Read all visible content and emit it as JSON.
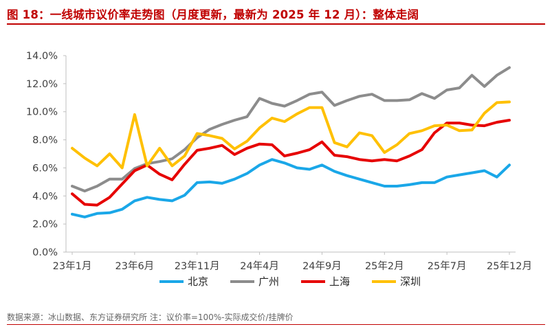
{
  "title": "图 18：一线城市议价率走势图（月度更新，最新为 2025 年 12 月）：整体走阔",
  "source": "数据来源：冰山数据、东方证券研究所   注：议价率=100%-实际成交价/挂牌价",
  "chart_data": {
    "type": "line",
    "ylim": [
      0,
      14
    ],
    "yticks": [
      "0.0%",
      "2.0%",
      "4.0%",
      "6.0%",
      "8.0%",
      "10.0%",
      "12.0%",
      "14.0%"
    ],
    "xtick_labels": [
      "23年1月",
      "23年6月",
      "23年11月",
      "24年4月",
      "24年9月",
      "25年2月",
      "25年7月",
      "25年12月"
    ],
    "xtick_index": [
      0,
      5,
      10,
      15,
      20,
      25,
      30,
      35
    ],
    "grid": false,
    "legend_position": "bottom",
    "n_points": 36,
    "series": [
      {
        "name": "北京",
        "color": "#1aa7e8",
        "values": [
          2.7,
          2.5,
          2.75,
          2.8,
          3.05,
          3.65,
          3.9,
          3.75,
          3.65,
          4.05,
          4.95,
          5.0,
          4.9,
          5.2,
          5.6,
          6.2,
          6.6,
          6.35,
          6.0,
          5.9,
          6.2,
          5.75,
          5.45,
          5.2,
          4.95,
          4.7,
          4.7,
          4.8,
          4.95,
          4.95,
          5.35,
          5.5,
          5.65,
          5.8,
          5.35,
          6.2
        ]
      },
      {
        "name": "广州",
        "color": "#8c8c8c",
        "values": [
          4.7,
          4.35,
          4.7,
          5.2,
          5.2,
          5.95,
          6.3,
          6.45,
          6.65,
          7.3,
          8.15,
          8.75,
          9.1,
          9.4,
          9.65,
          10.95,
          10.6,
          10.4,
          10.8,
          11.25,
          11.4,
          10.45,
          10.8,
          11.1,
          11.25,
          10.8,
          10.8,
          10.85,
          11.3,
          10.95,
          11.55,
          11.7,
          12.6,
          11.8,
          12.6,
          13.15
        ]
      },
      {
        "name": "上海",
        "color": "#e60000",
        "values": [
          4.15,
          3.4,
          3.35,
          3.9,
          4.85,
          5.8,
          6.2,
          5.55,
          5.15,
          6.25,
          7.25,
          7.4,
          7.6,
          6.95,
          7.4,
          7.7,
          7.65,
          6.85,
          7.05,
          7.3,
          7.85,
          6.9,
          6.8,
          6.6,
          6.5,
          6.6,
          6.5,
          6.85,
          7.3,
          8.5,
          9.2,
          9.2,
          9.05,
          9.0,
          9.25,
          9.4
        ]
      },
      {
        "name": "深圳",
        "color": "#ffc000",
        "values": [
          7.4,
          6.7,
          6.15,
          7.0,
          6.0,
          9.8,
          6.15,
          7.4,
          6.15,
          6.85,
          8.45,
          8.3,
          8.1,
          7.35,
          7.9,
          8.85,
          9.55,
          9.3,
          9.85,
          10.3,
          10.3,
          7.8,
          7.5,
          8.5,
          8.3,
          7.1,
          7.65,
          8.45,
          8.65,
          9.0,
          9.05,
          8.65,
          8.7,
          9.9,
          10.65,
          10.7
        ]
      }
    ]
  }
}
